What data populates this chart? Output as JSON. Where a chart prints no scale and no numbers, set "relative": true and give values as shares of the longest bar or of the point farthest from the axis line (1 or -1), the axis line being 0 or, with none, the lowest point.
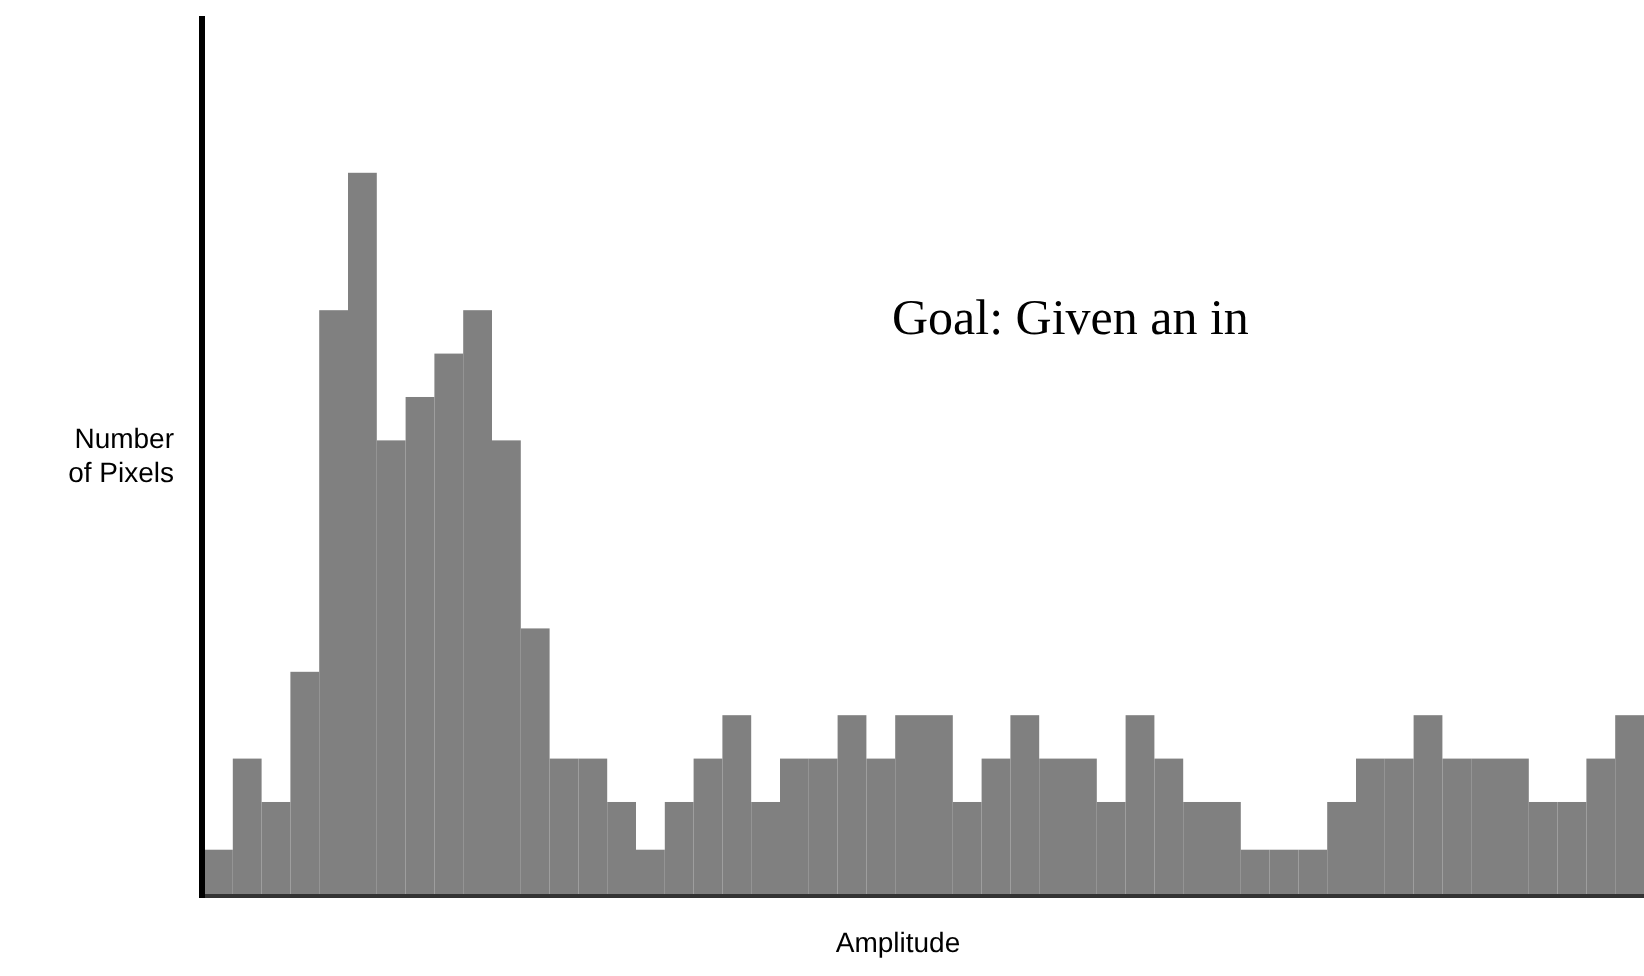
{
  "chart_data": {
    "type": "bar",
    "relative": true,
    "xlabel": "Amplitude",
    "ylabel": "Number\nof Pixels",
    "color": "#808080",
    "annotations": [
      "Goal: Given an in"
    ],
    "categories": [
      null,
      null,
      null,
      null,
      null,
      null,
      null,
      null,
      null,
      null,
      null,
      null,
      null,
      null,
      null,
      null,
      null,
      null,
      null,
      null,
      null,
      null,
      null,
      null,
      null,
      null,
      null,
      null,
      null,
      null,
      null,
      null,
      null,
      null,
      null,
      null,
      null,
      null,
      null,
      null,
      null,
      null,
      null,
      null,
      null,
      null,
      null,
      null,
      null,
      null
    ],
    "values": [
      0.064,
      0.19,
      0.13,
      0.31,
      0.81,
      1,
      0.63,
      0.69,
      0.75,
      0.81,
      0.63,
      0.37,
      0.19,
      0.19,
      0.13,
      0.064,
      0.13,
      0.19,
      0.25,
      0.13,
      0.19,
      0.19,
      0.25,
      0.19,
      0.25,
      0.25,
      0.13,
      0.19,
      0.25,
      0.19,
      0.19,
      0.13,
      0.25,
      0.19,
      0.13,
      0.13,
      0.064,
      0.064,
      0.064,
      0.13,
      0.19,
      0.19,
      0.25,
      0.19,
      0.19,
      0.19,
      0.13,
      0.13,
      0.19,
      0.25
    ]
  }
}
